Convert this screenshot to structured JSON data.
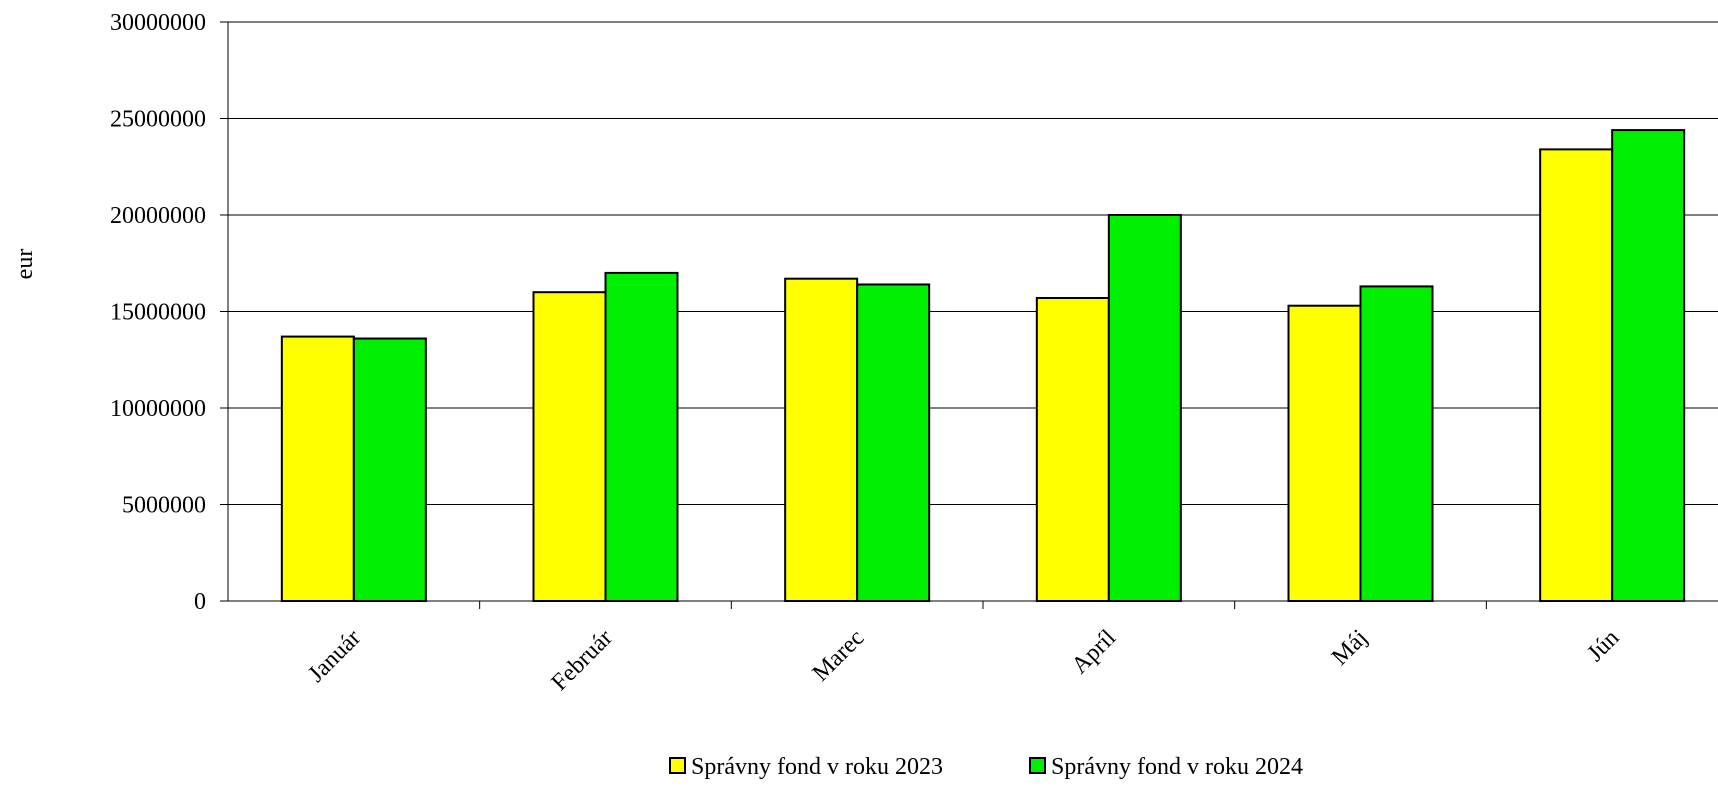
{
  "chart_data": {
    "type": "bar",
    "ylabel": "eur",
    "ylim": [
      0,
      30000000
    ],
    "yticks": [
      "0",
      "5000000",
      "10000000",
      "15000000",
      "20000000",
      "25000000",
      "30000000"
    ],
    "categories": [
      "Január",
      "Február",
      "Marec",
      "Apríl",
      "Máj",
      "Jún"
    ],
    "series": [
      {
        "name": "Správny fond v roku 2023",
        "color": "#ffff00",
        "values": [
          13700000,
          16000000,
          16700000,
          15700000,
          15300000,
          23400000
        ]
      },
      {
        "name": "Správny fond v roku 2024",
        "color": "#00ee00",
        "values": [
          13600000,
          17000000,
          16400000,
          20000000,
          16300000,
          24400000
        ]
      }
    ],
    "grid": true,
    "legend_position": "bottom"
  }
}
